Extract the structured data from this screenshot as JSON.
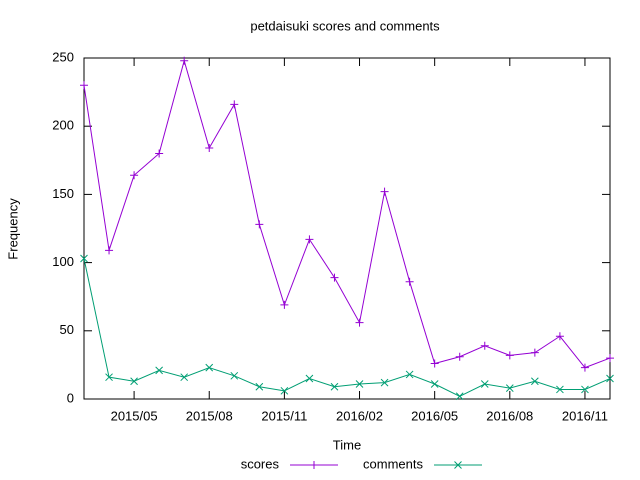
{
  "chart_data": {
    "type": "line",
    "title": "petdaisuki scores and comments",
    "xlabel": "Time",
    "ylabel": "Frequency",
    "x": [
      "2015/03",
      "2015/04",
      "2015/05",
      "2015/06",
      "2015/07",
      "2015/08",
      "2015/09",
      "2015/10",
      "2015/11",
      "2015/12",
      "2016/01",
      "2016/02",
      "2016/03",
      "2016/04",
      "2016/05",
      "2016/06",
      "2016/07",
      "2016/08",
      "2016/09",
      "2016/10",
      "2016/11",
      "2016/12"
    ],
    "series": [
      {
        "name": "scores",
        "color": "#9400d3",
        "marker": "+",
        "values": [
          230,
          109,
          164,
          180,
          248,
          184,
          216,
          128,
          69,
          117,
          89,
          56,
          152,
          86,
          26,
          31,
          39,
          32,
          34,
          46,
          23,
          30
        ]
      },
      {
        "name": "comments",
        "color": "#009e73",
        "marker": "x",
        "values": [
          103,
          16,
          13,
          21,
          16,
          23,
          17,
          9,
          6,
          15,
          9,
          11,
          12,
          18,
          11,
          2,
          11,
          8,
          13,
          7,
          7,
          15
        ]
      }
    ],
    "xlim": [
      "2015/03",
      "2016/12"
    ],
    "xticks": [
      "2015/05",
      "2015/08",
      "2015/11",
      "2016/02",
      "2016/05",
      "2016/08",
      "2016/11"
    ],
    "ylim": [
      0,
      250
    ],
    "yticks": [
      0,
      50,
      100,
      150,
      200,
      250
    ],
    "legend": "bottom"
  }
}
